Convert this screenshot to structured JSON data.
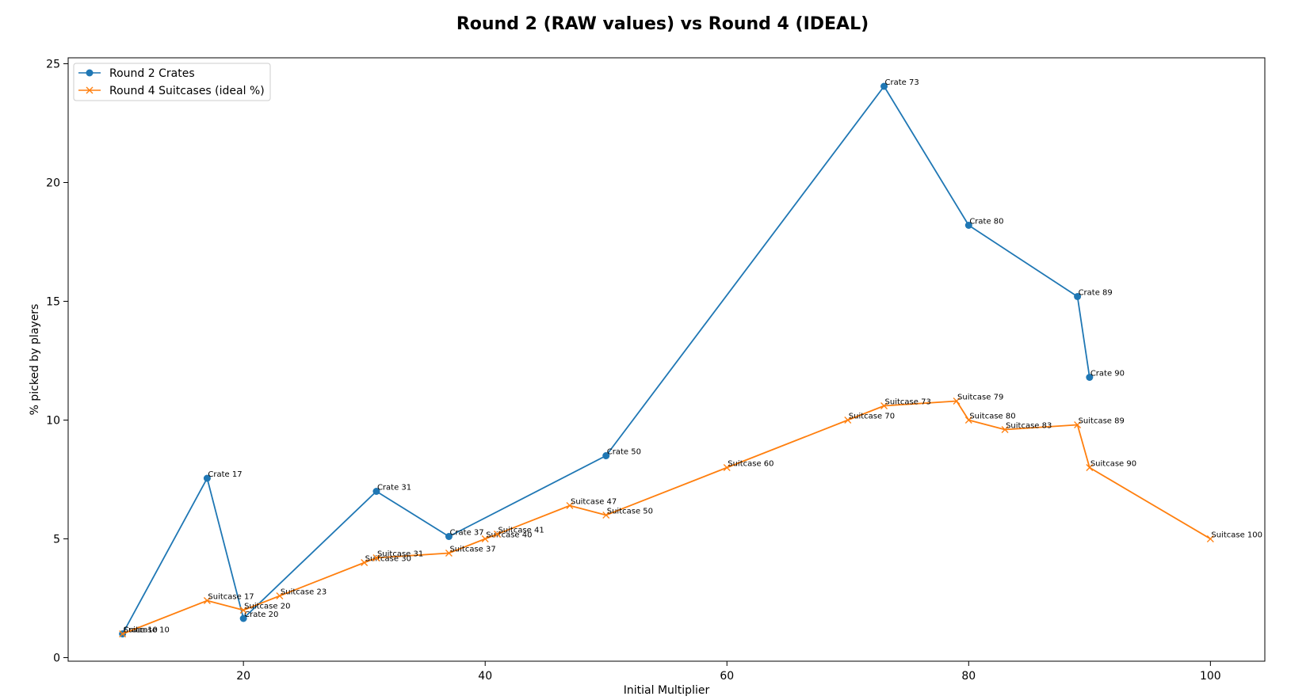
{
  "chart_data": {
    "type": "line",
    "title": "Round 2 (RAW values) vs Round 4 (IDEAL)",
    "xlabel": "Initial Multiplier",
    "ylabel": "% picked by players",
    "xlim": [
      5.5,
      104.5
    ],
    "ylim": [
      -0.15,
      25.25
    ],
    "xticks": [
      20,
      40,
      60,
      80,
      100
    ],
    "yticks": [
      0,
      5,
      10,
      15,
      20,
      25
    ],
    "grid": false,
    "legend_position": "top-left",
    "series": [
      {
        "name": "Round 2 Crates",
        "color": "#1f77b4",
        "marker": "circle",
        "points": [
          {
            "x": 10,
            "y": 1.0,
            "label": "Crate 10"
          },
          {
            "x": 17,
            "y": 7.55,
            "label": "Crate 17"
          },
          {
            "x": 20,
            "y": 1.65,
            "label": "Crate 20"
          },
          {
            "x": 31,
            "y": 7.0,
            "label": "Crate 31"
          },
          {
            "x": 37,
            "y": 5.1,
            "label": "Crate 37"
          },
          {
            "x": 50,
            "y": 8.5,
            "label": "Crate 50"
          },
          {
            "x": 73,
            "y": 24.05,
            "label": "Crate 73"
          },
          {
            "x": 80,
            "y": 18.2,
            "label": "Crate 80"
          },
          {
            "x": 89,
            "y": 15.2,
            "label": "Crate 89"
          },
          {
            "x": 90,
            "y": 11.8,
            "label": "Crate 90"
          }
        ]
      },
      {
        "name": "Round 4 Suitcases (ideal %)",
        "color": "#ff7f0e",
        "marker": "x",
        "points": [
          {
            "x": 10,
            "y": 1.0,
            "label": "Suitcase 10"
          },
          {
            "x": 17,
            "y": 2.4,
            "label": "Suitcase 17"
          },
          {
            "x": 20,
            "y": 2.0,
            "label": "Suitcase 20"
          },
          {
            "x": 23,
            "y": 2.6,
            "label": "Suitcase 23"
          },
          {
            "x": 30,
            "y": 4.0,
            "label": "Suitcase 30"
          },
          {
            "x": 31,
            "y": 4.2,
            "label": "Suitcase 31"
          },
          {
            "x": 37,
            "y": 4.4,
            "label": "Suitcase 37"
          },
          {
            "x": 40,
            "y": 5.0,
            "label": "Suitcase 40"
          },
          {
            "x": 41,
            "y": 5.2,
            "label": "Suitcase 41"
          },
          {
            "x": 47,
            "y": 6.4,
            "label": "Suitcase 47"
          },
          {
            "x": 50,
            "y": 6.0,
            "label": "Suitcase 50"
          },
          {
            "x": 60,
            "y": 8.0,
            "label": "Suitcase 60"
          },
          {
            "x": 70,
            "y": 10.0,
            "label": "Suitcase 70"
          },
          {
            "x": 73,
            "y": 10.6,
            "label": "Suitcase 73"
          },
          {
            "x": 79,
            "y": 10.8,
            "label": "Suitcase 79"
          },
          {
            "x": 80,
            "y": 10.0,
            "label": "Suitcase 80"
          },
          {
            "x": 83,
            "y": 9.6,
            "label": "Suitcase 83"
          },
          {
            "x": 89,
            "y": 9.8,
            "label": "Suitcase 89"
          },
          {
            "x": 90,
            "y": 8.0,
            "label": "Suitcase 90"
          },
          {
            "x": 100,
            "y": 5.0,
            "label": "Suitcase 100"
          }
        ]
      }
    ]
  }
}
